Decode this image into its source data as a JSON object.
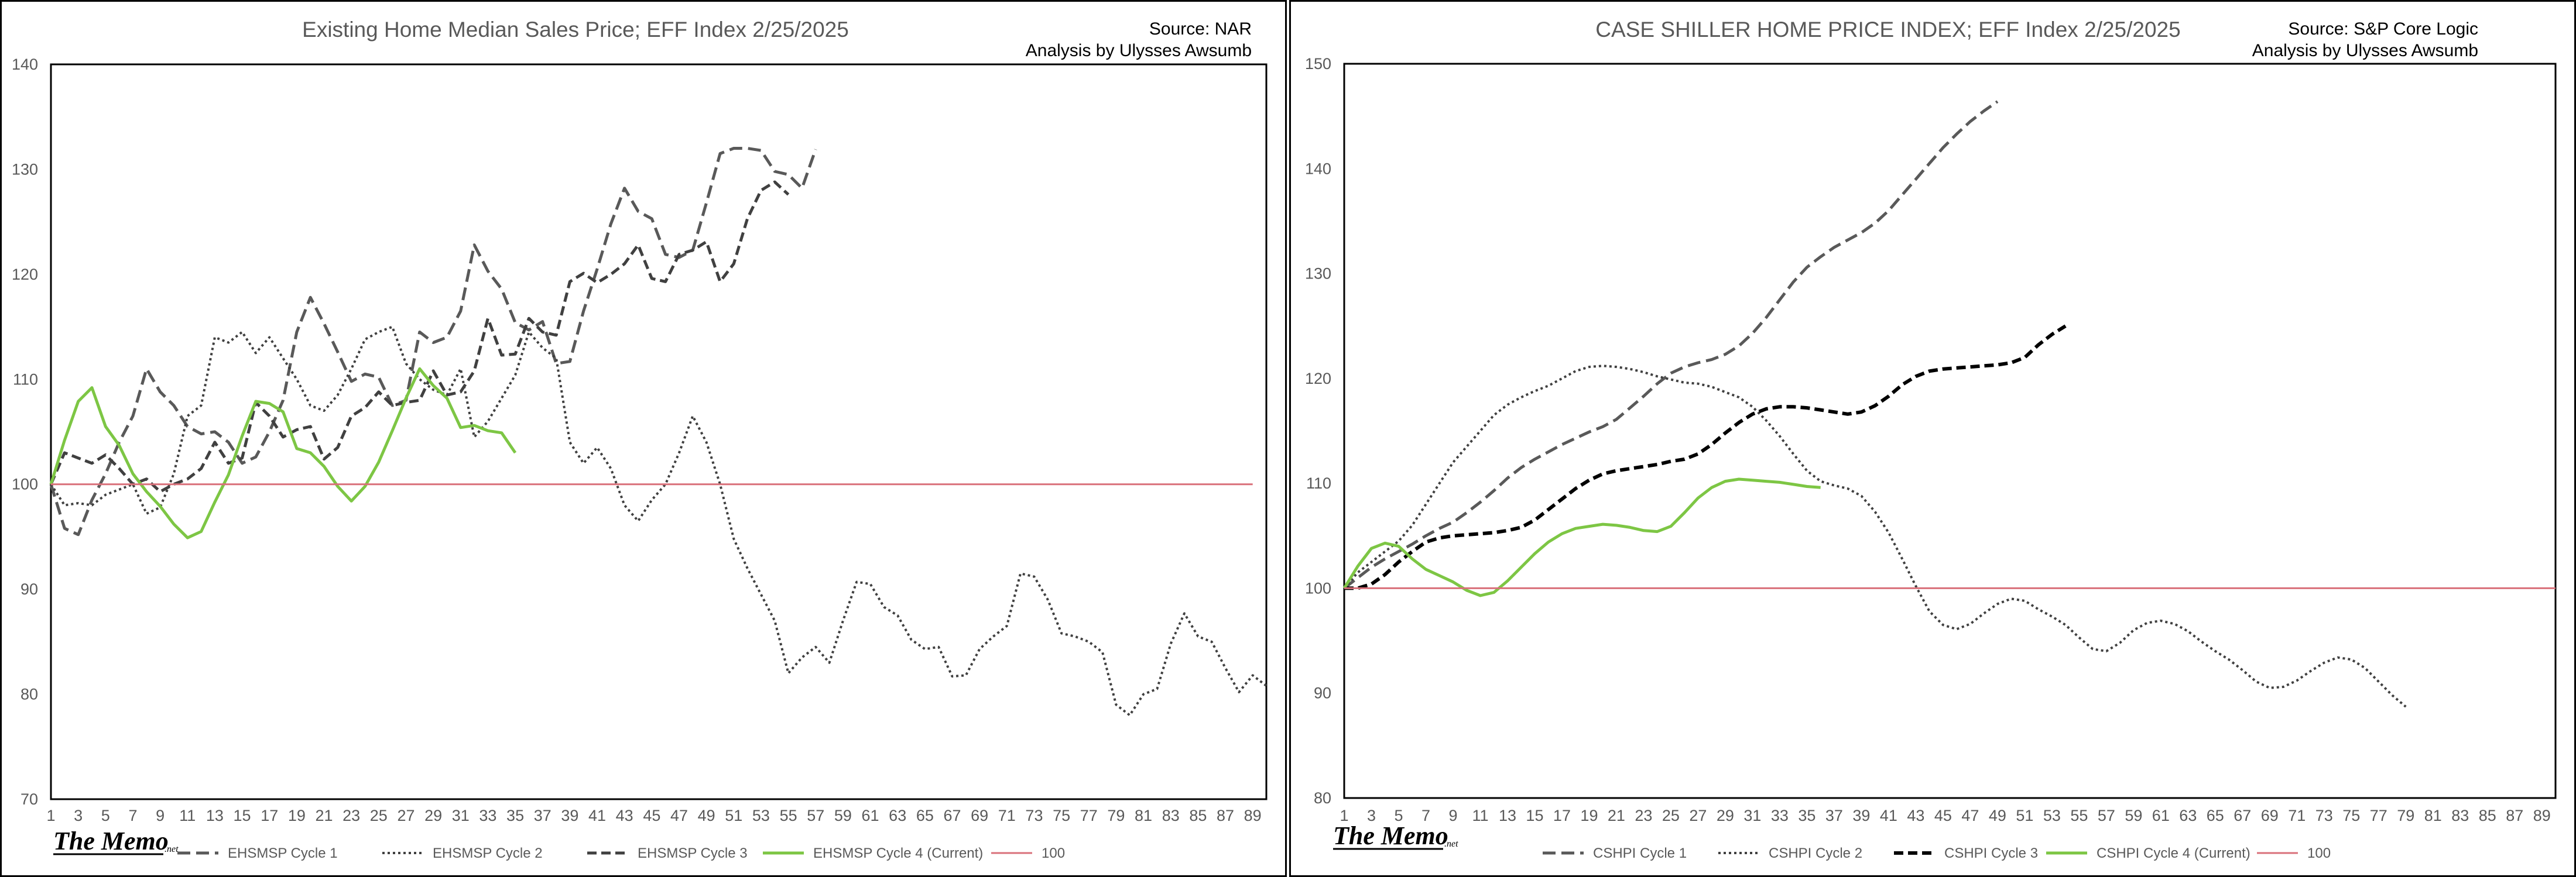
{
  "charts": [
    {
      "id": "ehsmsp",
      "title": "Existing Home Median Sales Price; EFF Index 2/25/2025",
      "source": "Source: NAR",
      "analysis": "Analysis by Ulysses Awsumb",
      "logo": "The Memo",
      "logo_sub": ".net",
      "colors": {
        "cycle1": "#595959",
        "cycle2": "#404040",
        "cycle3": "#404040",
        "cycle4": "#7dc644",
        "ref": "#d9707a"
      }
    },
    {
      "id": "cshpi",
      "title": "CASE SHILLER HOME PRICE INDEX; EFF Index 2/25/2025",
      "source": "Source: S&P Core Logic",
      "analysis": "Analysis by Ulysses Awsumb",
      "logo": "The Memo",
      "logo_sub": ".net",
      "colors": {
        "cycle1": "#595959",
        "cycle2": "#404040",
        "cycle3": "#000000",
        "cycle4": "#7dc644",
        "ref": "#d9707a"
      }
    }
  ],
  "chart_data": [
    {
      "type": "line",
      "title": "Existing Home Median Sales Price; EFF Index 2/25/2025",
      "xlabel": "",
      "ylabel": "",
      "ylim": [
        70,
        140
      ],
      "yticks": [
        70,
        80,
        90,
        100,
        110,
        120,
        130,
        140
      ],
      "xlim": [
        1,
        90
      ],
      "xticks": [
        1,
        3,
        5,
        7,
        9,
        11,
        13,
        15,
        17,
        19,
        21,
        23,
        25,
        27,
        29,
        31,
        33,
        35,
        37,
        39,
        41,
        43,
        45,
        47,
        49,
        51,
        53,
        55,
        57,
        59,
        61,
        63,
        65,
        67,
        69,
        71,
        73,
        75,
        77,
        79,
        81,
        83,
        85,
        87,
        89
      ],
      "grid": false,
      "legend": "bottom",
      "series": [
        {
          "name": "EHSMSP Cycle 1",
          "style": "dash-long",
          "values": [
            100,
            95.8,
            95.2,
            98.5,
            101,
            104,
            106.5,
            111,
            108.8,
            107.5,
            105.5,
            104.8,
            105,
            104,
            102,
            102.6,
            105,
            108,
            114.5,
            117.8,
            115.3,
            112.6,
            109.8,
            110.5,
            110.2,
            107.5,
            108,
            114.5,
            113.5,
            114,
            116.5,
            122.8,
            120.3,
            118.6,
            115.4,
            114.7,
            115.5,
            111.5,
            111.7,
            116.5,
            120.5,
            124.8,
            128.2,
            126,
            125.3,
            121.9,
            121.6,
            122.3,
            126.8,
            131.5,
            132,
            132,
            131.8,
            129.8,
            129.5,
            128.2,
            131.9
          ]
        },
        {
          "name": "EHSMSP Cycle 2",
          "style": "dot",
          "values": [
            100,
            98,
            98.2,
            98,
            99,
            99.5,
            100,
            97.2,
            97.8,
            101,
            106.5,
            107.5,
            114,
            113.5,
            114.5,
            112.5,
            114,
            112,
            110,
            107.5,
            107,
            108.5,
            111,
            113.8,
            114.5,
            115,
            111.5,
            110,
            109,
            108.5,
            111,
            104.5,
            106,
            108.2,
            110.4,
            114.5,
            113,
            112,
            104,
            102,
            103.5,
            101.5,
            98,
            96.5,
            98.5,
            100,
            103,
            106.5,
            104,
            100,
            94.8,
            92,
            89.5,
            87,
            82,
            83.5,
            84.5,
            83,
            87,
            90.7,
            90.5,
            88.3,
            87.5,
            85.2,
            84.3,
            84.5,
            81.7,
            81.8,
            84.3,
            85.5,
            86.5,
            91.5,
            91.2,
            89,
            85.8,
            85.5,
            85,
            84,
            79,
            78,
            80,
            80.5,
            84.8,
            87.7,
            85.5,
            85,
            82.5,
            80.2,
            81.8,
            80.8
          ]
        },
        {
          "name": "EHSMSP Cycle 3",
          "style": "dash",
          "values": [
            100,
            103,
            102.5,
            102,
            102.8,
            101.5,
            100,
            100.5,
            99.3,
            100,
            100.5,
            101.5,
            104,
            102,
            102.5,
            107.8,
            106.5,
            104.5,
            105.2,
            105.5,
            102.4,
            103.5,
            106.5,
            107.3,
            108.8,
            107.5,
            107.8,
            108,
            110.8,
            108.5,
            108.8,
            110.8,
            115.8,
            112.3,
            112.4,
            115.8,
            114.5,
            114.2,
            119.3,
            120.1,
            119.2,
            120,
            121,
            122.8,
            119.6,
            119.3,
            121.9,
            122.3,
            123.1,
            119.3,
            121,
            125.3,
            128,
            128.8,
            127.6
          ]
        },
        {
          "name": "EHSMSP Cycle 4 (Current)",
          "style": "solid-green",
          "values": [
            100,
            104.2,
            107.9,
            109.2,
            105.5,
            103.7,
            101,
            99.3,
            97.9,
            96.2,
            94.9,
            95.5,
            98.3,
            100.9,
            104.6,
            107.9,
            107.7,
            106.9,
            103.4,
            103,
            101.7,
            99.8,
            98.4,
            99.8,
            102.1,
            105.1,
            108.2,
            111,
            109.4,
            108.2,
            105.4,
            105.6,
            105.1,
            104.9,
            103
          ]
        },
        {
          "name": "100",
          "style": "ref",
          "values": [
            100,
            100
          ]
        }
      ]
    },
    {
      "type": "line",
      "title": "CASE SHILLER HOME PRICE INDEX; EFF Index 2/25/2025",
      "xlabel": "",
      "ylabel": "",
      "ylim": [
        80,
        150
      ],
      "yticks": [
        80,
        90,
        100,
        110,
        120,
        130,
        140,
        150
      ],
      "xlim": [
        1,
        90
      ],
      "xticks": [
        1,
        3,
        5,
        7,
        9,
        11,
        13,
        15,
        17,
        19,
        21,
        23,
        25,
        27,
        29,
        31,
        33,
        35,
        37,
        39,
        41,
        43,
        45,
        47,
        49,
        51,
        53,
        55,
        57,
        59,
        61,
        63,
        65,
        67,
        69,
        71,
        73,
        75,
        77,
        79,
        81,
        83,
        85,
        87,
        89
      ],
      "grid": false,
      "legend": "bottom",
      "series": [
        {
          "name": "CSHPI Cycle 1",
          "style": "dash-long",
          "values": [
            100,
            101,
            102,
            102.8,
            103.5,
            104.2,
            105,
            105.7,
            106.3,
            107.2,
            108.2,
            109.3,
            110.5,
            111.5,
            112.3,
            113,
            113.7,
            114.3,
            114.9,
            115.4,
            116.1,
            117.2,
            118.3,
            119.5,
            120.5,
            121.1,
            121.5,
            121.8,
            122.3,
            123.1,
            124.3,
            125.8,
            127.5,
            129.2,
            130.6,
            131.6,
            132.5,
            133.2,
            133.9,
            134.8,
            136,
            137.5,
            139,
            140.5,
            142,
            143.3,
            144.5,
            145.5,
            146.4
          ]
        },
        {
          "name": "CSHPI Cycle 2",
          "style": "dot",
          "values": [
            100,
            101.5,
            102.5,
            103.5,
            104.5,
            106,
            108,
            110,
            112,
            113.5,
            115,
            116.5,
            117.5,
            118.2,
            118.8,
            119.3,
            120,
            120.7,
            121.1,
            121.2,
            121.1,
            120.9,
            120.6,
            120.2,
            119.9,
            119.6,
            119.5,
            119.2,
            118.7,
            118.2,
            117.3,
            116,
            114.5,
            112.8,
            111.2,
            110.2,
            109.8,
            109.5,
            108.8,
            107.3,
            105.3,
            102.8,
            100.2,
            97.8,
            96.5,
            96.1,
            96.6,
            97.6,
            98.5,
            99,
            98.8,
            98,
            97.3,
            96.5,
            95.3,
            94.2,
            94,
            94.8,
            96,
            96.7,
            96.9,
            96.6,
            95.9,
            94.9,
            94,
            93.2,
            92.2,
            91.1,
            90.5,
            90.6,
            91.2,
            92.1,
            92.9,
            93.4,
            93.2,
            92.4,
            91.1,
            89.8,
            88.7
          ]
        },
        {
          "name": "CSHPI Cycle 3",
          "style": "dash-bold",
          "values": [
            100,
            100,
            100.4,
            101.3,
            102.5,
            103.5,
            104.4,
            104.8,
            105,
            105.1,
            105.2,
            105.3,
            105.5,
            105.8,
            106.5,
            107.5,
            108.5,
            109.5,
            110.3,
            110.9,
            111.2,
            111.4,
            111.6,
            111.8,
            112.1,
            112.3,
            112.8,
            113.7,
            114.8,
            115.8,
            116.6,
            117.1,
            117.3,
            117.3,
            117.2,
            117,
            116.8,
            116.6,
            116.8,
            117.4,
            118.3,
            119.4,
            120.2,
            120.7,
            120.9,
            121,
            121.1,
            121.2,
            121.3,
            121.5,
            122,
            123.2,
            124.2,
            125
          ]
        },
        {
          "name": "CSHPI Cycle 4 (Current)",
          "style": "solid-green",
          "values": [
            100,
            102.1,
            103.8,
            104.3,
            104,
            102.8,
            101.8,
            101.2,
            100.6,
            99.8,
            99.3,
            99.6,
            100.7,
            102,
            103.3,
            104.4,
            105.2,
            105.7,
            105.9,
            106.1,
            106,
            105.8,
            105.5,
            105.4,
            105.9,
            107.2,
            108.6,
            109.6,
            110.2,
            110.4,
            110.3,
            110.2,
            110.1,
            109.9,
            109.7,
            109.6
          ]
        },
        {
          "name": "100",
          "style": "ref",
          "values": [
            100,
            100
          ]
        }
      ]
    }
  ]
}
